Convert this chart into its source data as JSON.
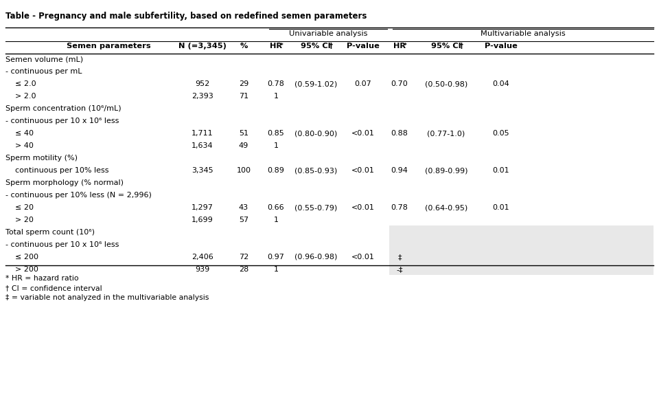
{
  "title": "Table - Pregnancy and male subfertility, based on redefined semen parameters",
  "col_headers_row1": [
    "",
    "",
    "Univariable analysis",
    "",
    "",
    "Multivariable analysis",
    "",
    ""
  ],
  "col_headers_row2": [
    "Semen parameters",
    "N (=3,345)",
    "%",
    "HR*",
    "95% CI†",
    "P-value",
    "HR*",
    "95% CI†",
    "P-value"
  ],
  "rows": [
    {
      "label": "Semen volume (mL)",
      "indent": 0,
      "bold": false,
      "N": "",
      "pct": "",
      "hr1": "",
      "ci1": "",
      "pv1": "",
      "hr2": "",
      "ci2": "",
      "pv2": "",
      "shaded": false
    },
    {
      "label": "- continuous per mL",
      "indent": 0,
      "bold": false,
      "N": "",
      "pct": "",
      "hr1": "",
      "ci1": "",
      "pv1": "",
      "hr2": "",
      "ci2": "",
      "pv2": "",
      "shaded": false
    },
    {
      "label": "≤ 2.0",
      "indent": 1,
      "bold": false,
      "N": "952",
      "pct": "29",
      "hr1": "0.78",
      "ci1": "(0.59-1.02)",
      "pv1": "0.07",
      "hr2": "0.70",
      "ci2": "(0.50-0.98)",
      "pv2": "0.04",
      "shaded": false
    },
    {
      "label": "> 2.0",
      "indent": 1,
      "bold": false,
      "N": "2,393",
      "pct": "71",
      "hr1": "1",
      "ci1": "",
      "pv1": "",
      "hr2": "",
      "ci2": "",
      "pv2": "",
      "shaded": false
    },
    {
      "label": "Sperm concentration (10⁶/mL)",
      "indent": 0,
      "bold": false,
      "N": "",
      "pct": "",
      "hr1": "",
      "ci1": "",
      "pv1": "",
      "hr2": "",
      "ci2": "",
      "pv2": "",
      "shaded": false
    },
    {
      "label": "- continuous per 10 x 10⁶ less",
      "indent": 0,
      "bold": false,
      "N": "",
      "pct": "",
      "hr1": "",
      "ci1": "",
      "pv1": "",
      "hr2": "",
      "ci2": "",
      "pv2": "",
      "shaded": false
    },
    {
      "label": "≤ 40",
      "indent": 1,
      "bold": false,
      "N": "1,711",
      "pct": "51",
      "hr1": "0.85",
      "ci1": "(0.80-0.90)",
      "pv1": "<0.01",
      "hr2": "0.88",
      "ci2": "(0.77-1.0)",
      "pv2": "0.05",
      "shaded": false
    },
    {
      "label": "> 40",
      "indent": 1,
      "bold": false,
      "N": "1,634",
      "pct": "49",
      "hr1": "1",
      "ci1": "",
      "pv1": "",
      "hr2": "",
      "ci2": "",
      "pv2": "",
      "shaded": false
    },
    {
      "label": "Sperm motility (%)",
      "indent": 0,
      "bold": false,
      "N": "",
      "pct": "",
      "hr1": "",
      "ci1": "",
      "pv1": "",
      "hr2": "",
      "ci2": "",
      "pv2": "",
      "shaded": false
    },
    {
      "label": "    continuous per 10% less",
      "indent": 0,
      "bold": false,
      "N": "3,345",
      "pct": "100",
      "hr1": "0.89",
      "ci1": "(0.85-0.93)",
      "pv1": "<0.01",
      "hr2": "0.94",
      "ci2": "(0.89-0.99)",
      "pv2": "0.01",
      "shaded": false
    },
    {
      "label": "Sperm morphology (% normal)",
      "indent": 0,
      "bold": false,
      "N": "",
      "pct": "",
      "hr1": "",
      "ci1": "",
      "pv1": "",
      "hr2": "",
      "ci2": "",
      "pv2": "",
      "shaded": false
    },
    {
      "label": "- continuous per 10% less (N = 2,996)",
      "indent": 0,
      "bold": false,
      "N": "",
      "pct": "",
      "hr1": "",
      "ci1": "",
      "pv1": "",
      "hr2": "",
      "ci2": "",
      "pv2": "",
      "shaded": false
    },
    {
      "label": "≤ 20",
      "indent": 1,
      "bold": false,
      "N": "1,297",
      "pct": "43",
      "hr1": "0.66",
      "ci1": "(0.55-0.79)",
      "pv1": "<0.01",
      "hr2": "0.78",
      "ci2": "(0.64-0.95)",
      "pv2": "0.01",
      "shaded": false
    },
    {
      "label": "> 20",
      "indent": 1,
      "bold": false,
      "N": "1,699",
      "pct": "57",
      "hr1": "1",
      "ci1": "",
      "pv1": "",
      "hr2": "",
      "ci2": "",
      "pv2": "",
      "shaded": false
    },
    {
      "label": "Total sperm count (10⁶)",
      "indent": 0,
      "bold": false,
      "N": "",
      "pct": "",
      "hr1": "",
      "ci1": "",
      "pv1": "",
      "hr2": "",
      "ci2": "",
      "pv2": "",
      "shaded": true
    },
    {
      "label": "- continuous per 10 x 10⁶ less",
      "indent": 0,
      "bold": false,
      "N": "",
      "pct": "",
      "hr1": "",
      "ci1": "",
      "pv1": "",
      "hr2": "",
      "ci2": "",
      "pv2": "",
      "shaded": true
    },
    {
      "label": "≤ 200",
      "indent": 1,
      "bold": false,
      "N": "2,406",
      "pct": "72",
      "hr1": "0.97",
      "ci1": "(0.96-0.98)",
      "pv1": "<0.01",
      "hr2": "‡",
      "ci2": "",
      "pv2": "",
      "shaded": true
    },
    {
      "label": "> 200",
      "indent": 1,
      "bold": false,
      "N": "939",
      "pct": "28",
      "hr1": "1",
      "ci1": "",
      "pv1": "",
      "hr2": "-‡",
      "ci2": "",
      "pv2": "",
      "shaded": true
    }
  ],
  "footnotes": [
    "* HR = hazard ratio",
    "† CI = confidence interval",
    "‡ = variable not analyzed in the multivariable analysis"
  ],
  "shaded_color": "#e8e8e8",
  "header_line_color": "#000000",
  "text_color": "#000000",
  "bg_color": "#ffffff"
}
